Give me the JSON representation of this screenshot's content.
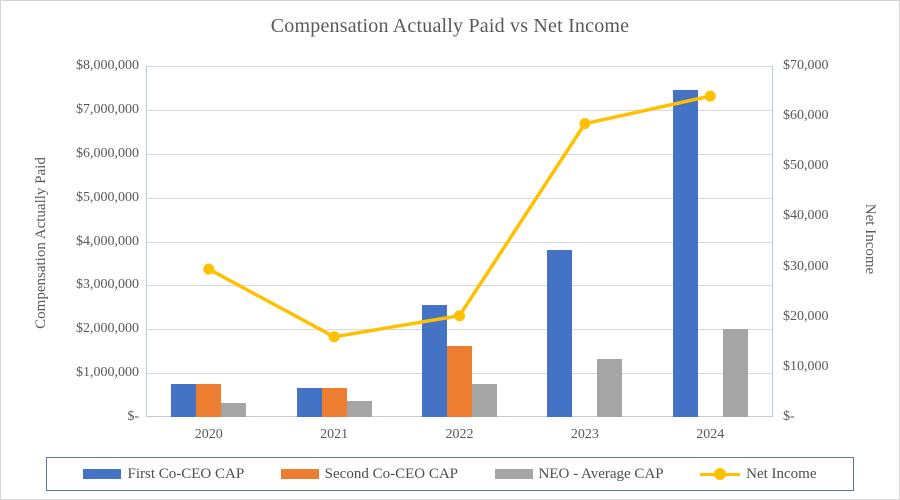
{
  "title": "Compensation Actually Paid vs Net Income",
  "left_axis": {
    "title": "Compensation Actually Paid",
    "ticks": [
      "$8,000,000",
      "$7,000,000",
      "$6,000,000",
      "$5,000,000",
      "$4,000,000",
      "$3,000,000",
      "$2,000,000",
      "$1,000,000",
      "$-"
    ]
  },
  "right_axis": {
    "title": "Net Income",
    "ticks": [
      "$70,000",
      "$60,000",
      "$50,000",
      "$40,000",
      "$30,000",
      "$20,000",
      "$10,000",
      "$-"
    ]
  },
  "x_axis": {
    "labels": [
      "2020",
      "2021",
      "2022",
      "2023",
      "2024"
    ]
  },
  "legend": [
    {
      "label": "First Co-CEO CAP",
      "swatch": "bar",
      "color": "#4472C4"
    },
    {
      "label": "Second Co-CEO CAP",
      "swatch": "bar",
      "color": "#ED7D31"
    },
    {
      "label": "NEO - Average CAP",
      "swatch": "bar",
      "color": "#A5A5A5"
    },
    {
      "label": "Net Income",
      "swatch": "line",
      "color": "#FFC000"
    }
  ],
  "colors": {
    "blue": "#4472C4",
    "orange": "#ED7D31",
    "gray": "#A5A5A5",
    "yellow": "#FFC000",
    "text": "#595959",
    "gridline": "#D9D9D9",
    "axis_line": "#B9CBDF",
    "legend_border": "#5E7A9B",
    "frame_border": "#D5D5D5"
  },
  "chart_data": {
    "type": "bar",
    "subtype": "grouped-bars-with-line-dual-axis",
    "title": "Compensation Actually Paid vs Net Income",
    "xlabel": "",
    "ylabel_left": "Compensation Actually Paid",
    "ylabel_right": "Net Income",
    "categories": [
      "2020",
      "2021",
      "2022",
      "2023",
      "2024"
    ],
    "series": [
      {
        "name": "First Co-CEO CAP",
        "type": "bar",
        "axis": "left",
        "color": "#4472C4",
        "values": [
          760000,
          670000,
          2550000,
          3800000,
          7450000
        ]
      },
      {
        "name": "Second Co-CEO CAP",
        "type": "bar",
        "axis": "left",
        "color": "#ED7D31",
        "values": [
          760000,
          670000,
          1610000,
          0,
          0
        ]
      },
      {
        "name": "NEO - Average CAP",
        "type": "bar",
        "axis": "left",
        "color": "#A5A5A5",
        "values": [
          330000,
          360000,
          750000,
          1330000,
          2000000
        ]
      },
      {
        "name": "Net Income",
        "type": "line",
        "axis": "right",
        "color": "#FFC000",
        "values": [
          29500,
          16000,
          20200,
          58500,
          64000
        ]
      }
    ],
    "left_ylim": [
      0,
      8000000
    ],
    "right_ylim": [
      0,
      70000
    ],
    "left_tick_step": 1000000,
    "right_tick_step": 10000,
    "grid": true,
    "legend_position": "bottom"
  }
}
